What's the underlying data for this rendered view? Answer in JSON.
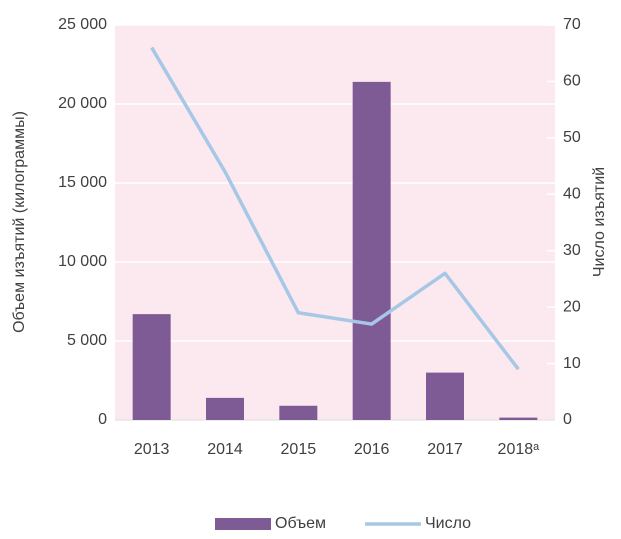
{
  "chart_data": {
    "type": "bar",
    "categories": [
      "2013",
      "2014",
      "2015",
      "2016",
      "2017",
      "2018ᵃ"
    ],
    "series": [
      {
        "name": "Объем",
        "type": "bar",
        "color": "#7f5b96",
        "values": [
          6700,
          1400,
          900,
          21400,
          3000,
          150
        ]
      },
      {
        "name": "Число",
        "type": "line",
        "color": "#a6c8e6",
        "axis": "y2",
        "values": [
          66,
          44,
          19,
          17,
          26,
          9
        ]
      }
    ],
    "y_label": "Объем изъятий (килограммы)",
    "y2_label": "Число изъятий",
    "ylim": [
      0,
      25000
    ],
    "yticks": [
      0,
      {
        "value": 5000,
        "label": "5 000"
      },
      {
        "value": 10000,
        "label": "10 000"
      },
      {
        "value": 15000,
        "label": "15 000"
      },
      {
        "value": 20000,
        "label": "20 000"
      },
      {
        "value": 25000,
        "label": "25 000"
      }
    ],
    "y2lim": [
      0,
      70
    ],
    "y2ticks": [
      0,
      10,
      20,
      30,
      40,
      50,
      60,
      70
    ],
    "grid": true,
    "background": "#fce8ef",
    "legend": "bottom"
  }
}
